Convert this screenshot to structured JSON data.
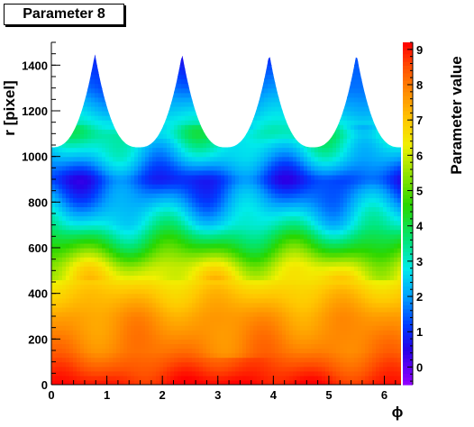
{
  "title": "Parameter 8",
  "chart_data": {
    "type": "heatmap",
    "title": "Parameter 8",
    "xlabel": "ϕ",
    "ylabel": "r [pixel]",
    "zlabel": "Parameter value",
    "xlim": [
      0,
      6.3
    ],
    "ylim": [
      0,
      1500
    ],
    "zlim": [
      -0.5,
      9.2
    ],
    "x_ticks": [
      "0",
      "1",
      "2",
      "3",
      "4",
      "5",
      "6"
    ],
    "y_ticks": [
      "0",
      "200",
      "400",
      "600",
      "800",
      "1000",
      "1200",
      "1400"
    ],
    "z_ticks": [
      "0",
      "1",
      "2",
      "3",
      "4",
      "5",
      "6",
      "7",
      "8",
      "9"
    ],
    "cusp_peaks_phi": [
      0.785,
      2.356,
      3.927,
      5.498
    ],
    "cusp_peak_r": 1450,
    "cusp_valley_r": 1040,
    "value_profile": [
      {
        "r": 0,
        "value": 9.0
      },
      {
        "r": 60,
        "value": 8.6
      },
      {
        "r": 150,
        "value": 8.0
      },
      {
        "r": 300,
        "value": 7.6
      },
      {
        "r": 420,
        "value": 6.9
      },
      {
        "r": 520,
        "value": 6.0
      },
      {
        "r": 600,
        "value": 4.6
      },
      {
        "r": 700,
        "value": 3.0
      },
      {
        "r": 800,
        "value": 2.0
      },
      {
        "r": 900,
        "value": 1.1
      },
      {
        "r": 1000,
        "value": 2.4
      },
      {
        "r": 1100,
        "value": 3.3
      },
      {
        "r": 1200,
        "value": 2.4
      },
      {
        "r": 1300,
        "value": 1.6
      },
      {
        "r": 1450,
        "value": 0.9
      }
    ],
    "grid": false
  }
}
